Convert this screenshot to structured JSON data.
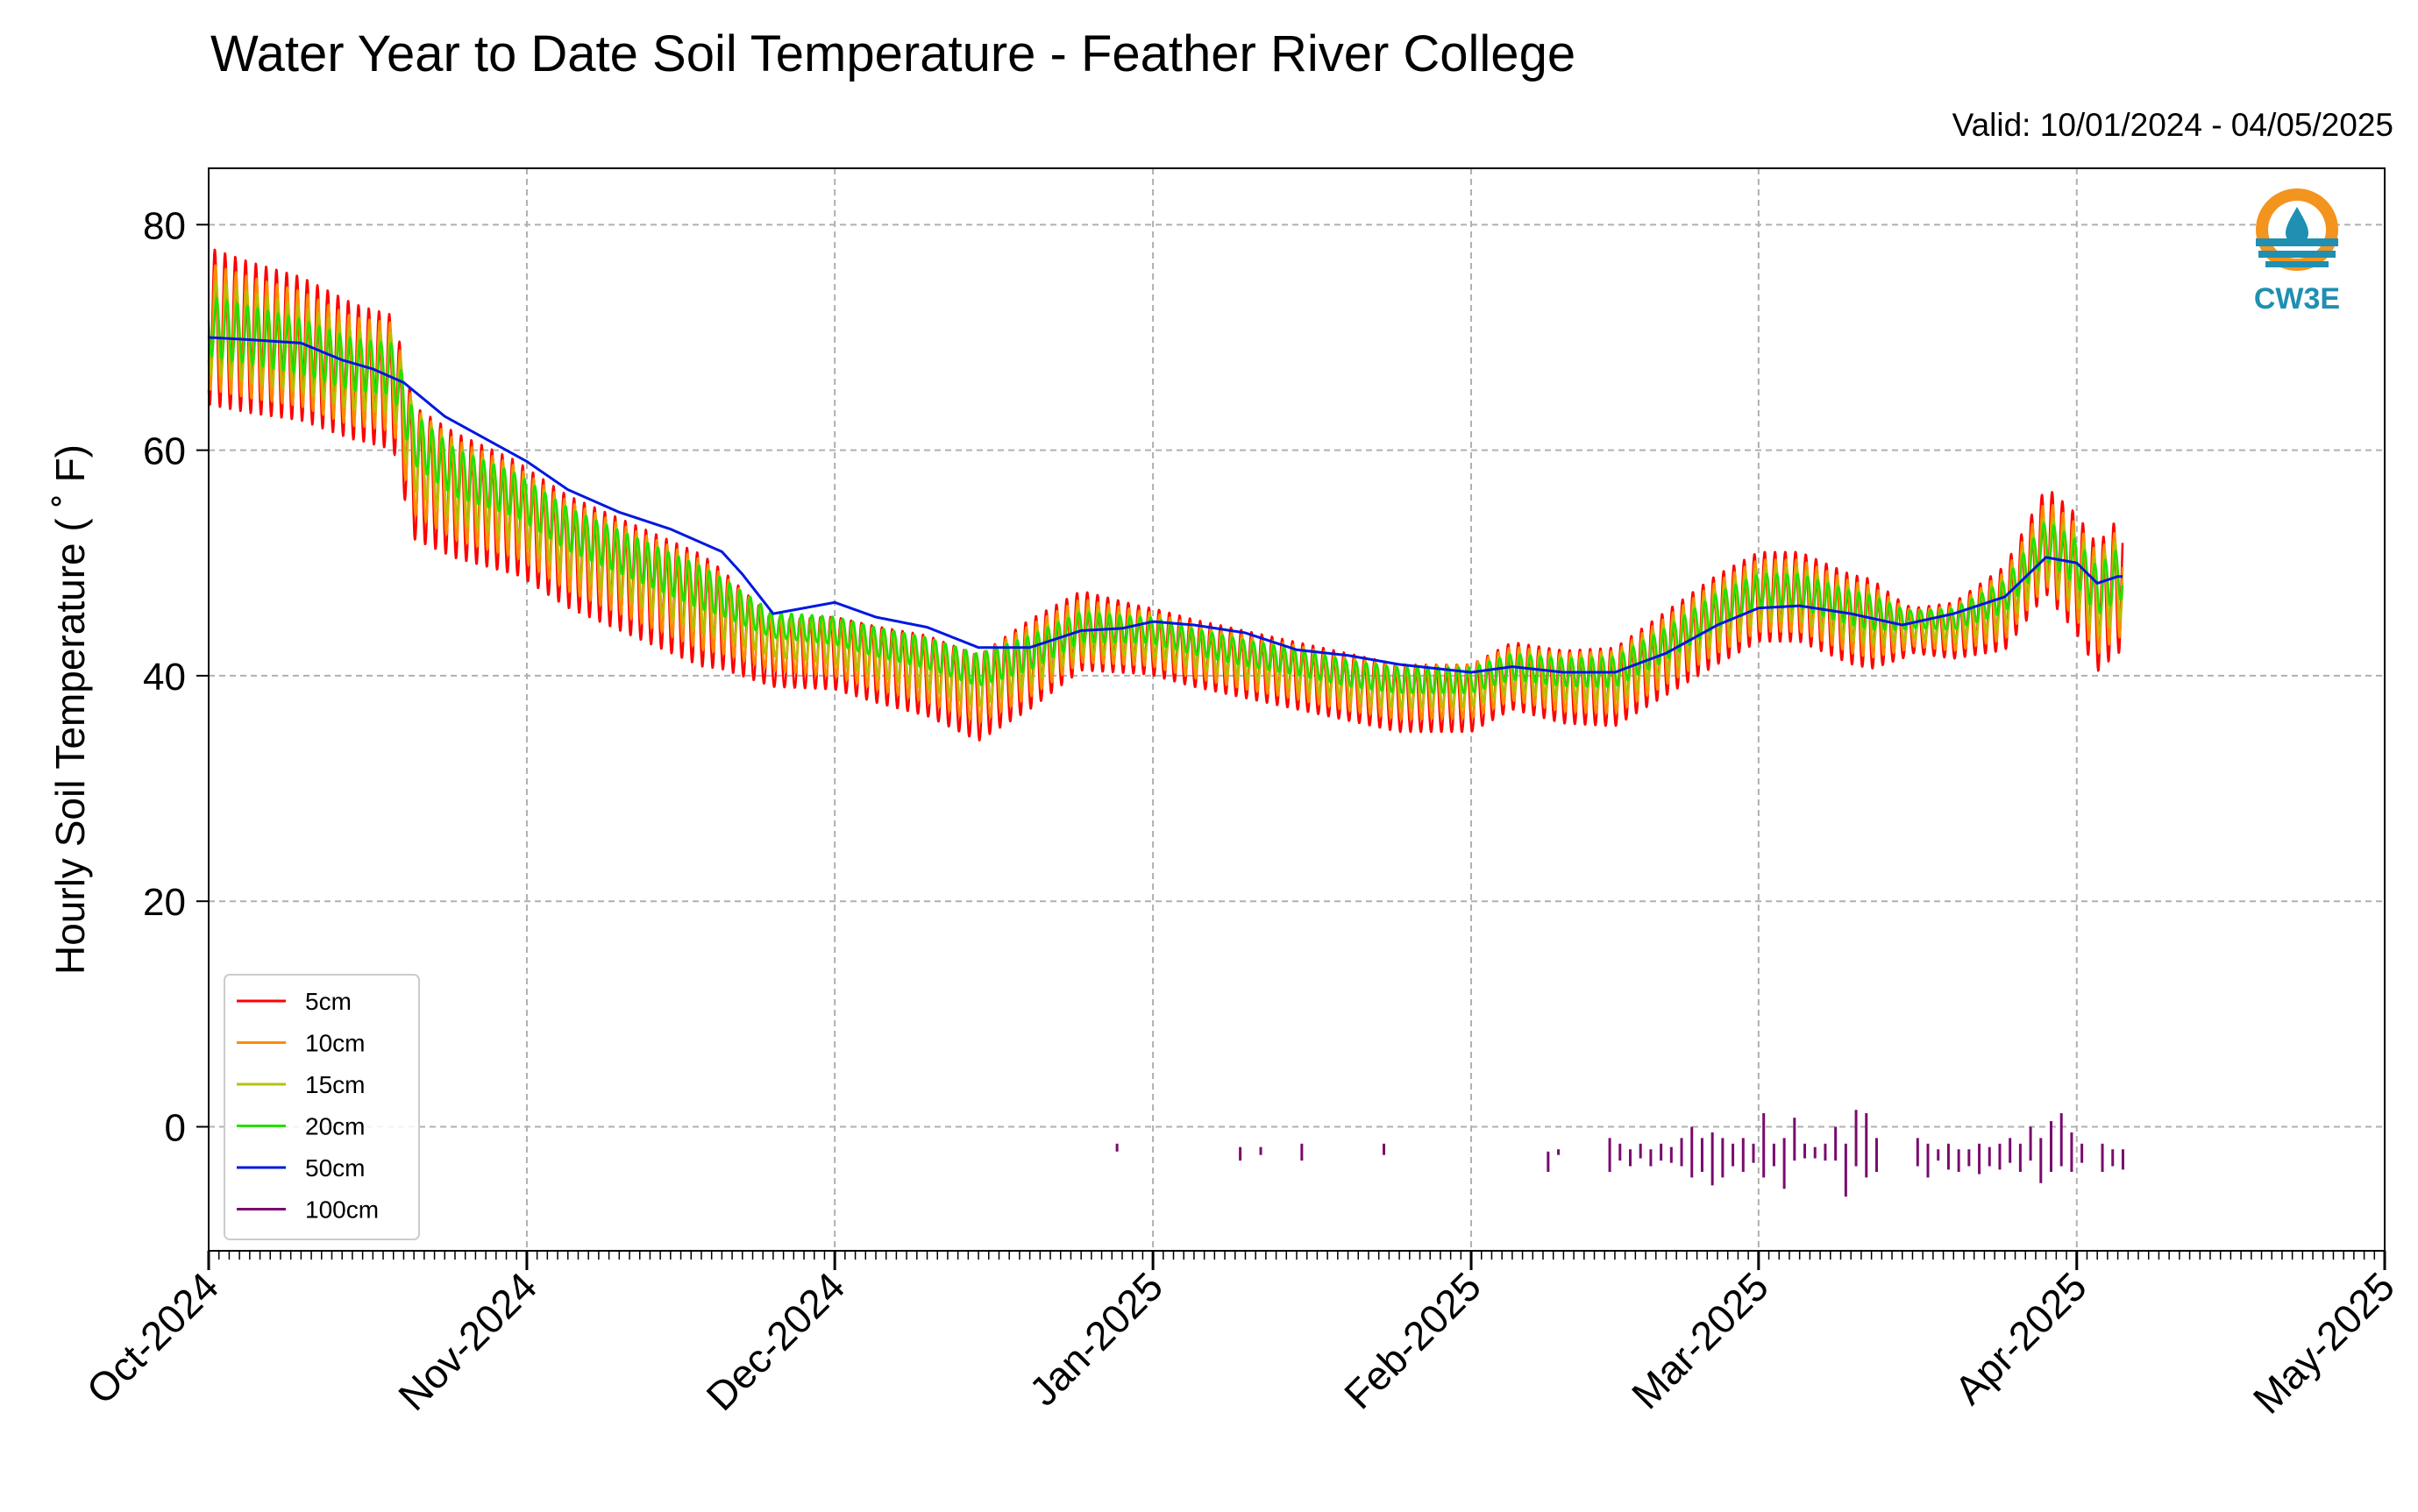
{
  "header": {
    "title": "Water Year to Date Soil Temperature - Feather River College",
    "valid": "Valid: 10/01/2024 - 04/05/2025"
  },
  "logo": {
    "text": "CW3E",
    "icon": "water-drop-sun-icon",
    "colors": {
      "orange": "#f3941e",
      "teal": "#1f8fb2"
    }
  },
  "chart_data": {
    "type": "line",
    "title": "Water Year to Date Soil Temperature - Feather River College",
    "ylabel": "Hourly Soil Temperature ( ˚ F)",
    "ylim": [
      -11,
      85
    ],
    "yticks": [
      0,
      20,
      40,
      60,
      80
    ],
    "xlim": [
      "2024-10-01",
      "2025-05-01"
    ],
    "xtick_labels": [
      "Oct-2024",
      "Nov-2024",
      "Dec-2024",
      "Jan-2025",
      "Feb-2025",
      "Mar-2025",
      "Apr-2025",
      "May-2025"
    ],
    "xtick_dates": [
      "2024-10-01",
      "2024-11-01",
      "2024-12-01",
      "2025-01-01",
      "2025-02-01",
      "2025-03-01",
      "2025-04-01",
      "2025-05-01"
    ],
    "grid": true,
    "legend_position": "lower-left",
    "series": [
      {
        "name": "5cm",
        "color": "#ff0000",
        "amp_scale": 1.0,
        "lag": 0.0,
        "mean_dates": [
          "2024-10-01",
          "2024-10-05",
          "2024-10-10",
          "2024-10-15",
          "2024-10-19",
          "2024-10-21",
          "2024-10-25",
          "2024-10-31",
          "2024-11-05",
          "2024-11-10",
          "2024-11-15",
          "2024-11-20",
          "2024-11-25",
          "2024-12-01",
          "2024-12-05",
          "2024-12-10",
          "2024-12-15",
          "2024-12-20",
          "2024-12-25",
          "2025-01-01",
          "2025-01-05",
          "2025-01-10",
          "2025-01-15",
          "2025-01-20",
          "2025-01-25",
          "2025-02-01",
          "2025-02-05",
          "2025-02-10",
          "2025-02-15",
          "2025-02-20",
          "2025-02-25",
          "2025-03-01",
          "2025-03-05",
          "2025-03-10",
          "2025-03-15",
          "2025-03-20",
          "2025-03-25",
          "2025-03-29",
          "2025-04-01",
          "2025-04-03",
          "2025-04-05"
        ],
        "mean_values": [
          71,
          70,
          69,
          67,
          66,
          58,
          56,
          54,
          51,
          49,
          47,
          45,
          42,
          42,
          41,
          40,
          38,
          41,
          44,
          43,
          42,
          41,
          40,
          39,
          38,
          38,
          40,
          39,
          39,
          42,
          45,
          47,
          47,
          45,
          44,
          44,
          46,
          52,
          49,
          46,
          48
        ],
        "amp_dates": [
          "2024-10-01",
          "2024-10-16",
          "2024-10-20",
          "2024-11-01",
          "2024-11-18",
          "2024-11-25",
          "2024-12-20",
          "2024-12-31",
          "2025-01-05",
          "2025-01-31",
          "2025-02-05",
          "2025-02-15",
          "2025-02-25",
          "2025-03-12",
          "2025-03-16",
          "2025-03-20",
          "2025-03-30",
          "2025-04-05"
        ],
        "amp_values": [
          7,
          6,
          6,
          5,
          5,
          3,
          4,
          3,
          3,
          3,
          3,
          3.5,
          4,
          4,
          2,
          2.5,
          5,
          6
        ],
        "note": ""
      },
      {
        "name": "10cm",
        "color": "#ff8c00",
        "amp_scale": 0.8,
        "lag": 0.06,
        "mean_dates": [
          "2024-10-01",
          "2024-10-05",
          "2024-10-10",
          "2024-10-15",
          "2024-10-19",
          "2024-10-21",
          "2024-10-25",
          "2024-10-31",
          "2024-11-05",
          "2024-11-10",
          "2024-11-15",
          "2024-11-20",
          "2024-11-25",
          "2024-12-01",
          "2024-12-05",
          "2024-12-10",
          "2024-12-15",
          "2024-12-20",
          "2024-12-25",
          "2025-01-01",
          "2025-01-05",
          "2025-01-10",
          "2025-01-15",
          "2025-01-20",
          "2025-01-25",
          "2025-02-01",
          "2025-02-05",
          "2025-02-10",
          "2025-02-15",
          "2025-02-20",
          "2025-02-25",
          "2025-03-01",
          "2025-03-05",
          "2025-03-10",
          "2025-03-15",
          "2025-03-20",
          "2025-03-25",
          "2025-03-29",
          "2025-04-01",
          "2025-04-03",
          "2025-04-05"
        ],
        "mean_values": [
          71,
          70,
          69,
          67,
          66.5,
          59,
          56.5,
          54.5,
          51.5,
          49.5,
          47.5,
          45.5,
          42.8,
          42.5,
          41.5,
          40.5,
          38.8,
          41.3,
          44,
          43.2,
          42.2,
          41.2,
          40.3,
          39.3,
          38.5,
          38.6,
          40.2,
          39.4,
          39.4,
          42.2,
          45.2,
          47.1,
          47.1,
          45.2,
          44.2,
          44.2,
          46.2,
          51.8,
          49.2,
          46.4,
          48.2
        ],
        "amp_dates": [
          "2024-10-01",
          "2024-10-16",
          "2024-10-20",
          "2024-11-01",
          "2024-11-18",
          "2024-11-25",
          "2024-12-20",
          "2024-12-31",
          "2025-01-05",
          "2025-01-31",
          "2025-02-05",
          "2025-02-15",
          "2025-02-25",
          "2025-03-12",
          "2025-03-16",
          "2025-03-20",
          "2025-03-30",
          "2025-04-05"
        ],
        "amp_values": [
          7,
          6,
          6,
          5,
          5,
          3,
          4,
          3,
          3,
          3,
          3,
          3.5,
          4,
          4,
          2,
          2.5,
          5,
          6
        ],
        "note": ""
      },
      {
        "name": "15cm",
        "color": "#b8c000",
        "amp_scale": 0.6,
        "lag": 0.12,
        "mean_dates": [
          "2024-10-01",
          "2024-10-05",
          "2024-10-10",
          "2024-10-15",
          "2024-10-19",
          "2024-10-21",
          "2024-10-25",
          "2024-10-31",
          "2024-11-05",
          "2024-11-10",
          "2024-11-15",
          "2024-11-20",
          "2024-11-25",
          "2024-12-01",
          "2024-12-05",
          "2024-12-10",
          "2024-12-15",
          "2024-12-20",
          "2024-12-25",
          "2025-01-01",
          "2025-01-05",
          "2025-01-10",
          "2025-01-15",
          "2025-01-20",
          "2025-01-25",
          "2025-02-01",
          "2025-02-05",
          "2025-02-10",
          "2025-02-15",
          "2025-02-20",
          "2025-02-25",
          "2025-03-01",
          "2025-03-05",
          "2025-03-10",
          "2025-03-15",
          "2025-03-20",
          "2025-03-25",
          "2025-03-29",
          "2025-04-01",
          "2025-04-03",
          "2025-04-05"
        ],
        "mean_values": [
          71,
          70,
          69,
          67.2,
          66.8,
          60,
          57,
          55,
          52,
          50,
          48,
          46,
          43.5,
          43,
          42,
          41,
          39.5,
          41.5,
          44,
          43.5,
          42.5,
          41.5,
          40.6,
          39.6,
          38.9,
          39,
          40.4,
          39.8,
          39.8,
          42.4,
          45.4,
          47.2,
          47.2,
          45.5,
          44.5,
          44.5,
          46.5,
          51.5,
          49.5,
          46.8,
          48.5
        ],
        "amp_dates": [
          "2024-10-01",
          "2024-10-16",
          "2024-10-20",
          "2024-11-01",
          "2024-11-18",
          "2024-11-25",
          "2024-12-20",
          "2024-12-31",
          "2025-01-05",
          "2025-01-31",
          "2025-02-05",
          "2025-02-15",
          "2025-02-25",
          "2025-03-12",
          "2025-03-16",
          "2025-03-20",
          "2025-03-30",
          "2025-04-05"
        ],
        "amp_values": [
          7,
          6,
          6,
          5,
          5,
          3,
          4,
          3,
          3,
          3,
          3,
          3.5,
          4,
          4,
          2,
          2.5,
          5,
          6
        ],
        "note": ""
      },
      {
        "name": "20cm",
        "color": "#22e000",
        "amp_scale": 0.38,
        "lag": 0.18,
        "mean_dates": [
          "2024-10-01",
          "2024-10-05",
          "2024-10-10",
          "2024-10-15",
          "2024-10-19",
          "2024-10-21",
          "2024-10-25",
          "2024-10-31",
          "2024-11-05",
          "2024-11-10",
          "2024-11-15",
          "2024-11-20",
          "2024-11-25",
          "2024-12-01",
          "2024-12-05",
          "2024-12-10",
          "2024-12-15",
          "2024-12-20",
          "2024-12-25",
          "2025-01-01",
          "2025-01-05",
          "2025-01-10",
          "2025-01-15",
          "2025-01-20",
          "2025-01-25",
          "2025-02-01",
          "2025-02-05",
          "2025-02-10",
          "2025-02-15",
          "2025-02-20",
          "2025-02-25",
          "2025-03-01",
          "2025-03-05",
          "2025-03-10",
          "2025-03-15",
          "2025-03-20",
          "2025-03-25",
          "2025-03-29",
          "2025-04-01",
          "2025-04-03",
          "2025-04-05"
        ],
        "mean_values": [
          71,
          70.2,
          69.2,
          67.6,
          67.2,
          61,
          58,
          56,
          53,
          51,
          49,
          47,
          44.5,
          44,
          43,
          42,
          40.5,
          42,
          44.3,
          44,
          43,
          42,
          41.2,
          40.2,
          39.6,
          39.6,
          40.8,
          40.3,
          40.3,
          42.8,
          45.8,
          47.5,
          47.5,
          46,
          45,
          45,
          47,
          52,
          50,
          47.5,
          49
        ],
        "amp_dates": [
          "2024-10-01",
          "2024-10-16",
          "2024-10-20",
          "2024-11-01",
          "2024-11-18",
          "2024-11-25",
          "2024-12-20",
          "2024-12-31",
          "2025-01-05",
          "2025-01-31",
          "2025-02-05",
          "2025-02-15",
          "2025-02-25",
          "2025-03-12",
          "2025-03-16",
          "2025-03-20",
          "2025-03-30",
          "2025-04-05"
        ],
        "amp_values": [
          7,
          6,
          6,
          5,
          5,
          3,
          4,
          3,
          3,
          3,
          3,
          3.5,
          4,
          4,
          2,
          2.5,
          5,
          6
        ],
        "note": ""
      },
      {
        "name": "50cm",
        "color": "#0018e0",
        "amp_scale": 0.0,
        "lag": 0.0,
        "mean_dates": [
          "2024-10-01",
          "2024-10-05",
          "2024-10-10",
          "2024-10-14",
          "2024-10-17",
          "2024-10-20",
          "2024-10-24",
          "2024-10-28",
          "2024-11-01",
          "2024-11-05",
          "2024-11-10",
          "2024-11-15",
          "2024-11-20",
          "2024-11-22",
          "2024-11-25",
          "2024-12-01",
          "2024-12-05",
          "2024-12-10",
          "2024-12-15",
          "2024-12-20",
          "2024-12-25",
          "2024-12-29",
          "2025-01-01",
          "2025-01-05",
          "2025-01-10",
          "2025-01-15",
          "2025-01-20",
          "2025-01-25",
          "2025-02-01",
          "2025-02-05",
          "2025-02-10",
          "2025-02-15",
          "2025-02-20",
          "2025-02-25",
          "2025-03-01",
          "2025-03-05",
          "2025-03-10",
          "2025-03-15",
          "2025-03-20",
          "2025-03-25",
          "2025-03-29",
          "2025-04-01",
          "2025-04-03",
          "2025-04-05"
        ],
        "mean_values": [
          70,
          69.8,
          69.5,
          68,
          67.2,
          66,
          63,
          61,
          59,
          56.5,
          54.5,
          53,
          51,
          49,
          45.5,
          46.5,
          45.2,
          44.3,
          42.5,
          42.5,
          44,
          44.2,
          44.8,
          44.5,
          43.8,
          42.3,
          41.8,
          41,
          40.3,
          40.8,
          40.3,
          40.3,
          42,
          44.5,
          46,
          46.2,
          45.5,
          44.5,
          45.5,
          47,
          50.5,
          50,
          48.2,
          48.8
        ],
        "note": ""
      },
      {
        "name": "100cm",
        "color": "#7a0a6e",
        "segments": [
          {
            "date": "2024-12-28",
            "y0": -1.5,
            "y1": -2.2
          },
          {
            "date": "2025-01-09",
            "y0": -1.8,
            "y1": -3.0
          },
          {
            "date": "2025-01-11",
            "y0": -1.8,
            "y1": -2.5
          },
          {
            "date": "2025-01-15",
            "y0": -1.5,
            "y1": -3.0
          },
          {
            "date": "2025-01-23",
            "y0": -1.5,
            "y1": -2.5
          },
          {
            "date": "2025-02-08",
            "y0": -2.2,
            "y1": -4.0
          },
          {
            "date": "2025-02-09",
            "y0": -2.0,
            "y1": -2.5
          },
          {
            "date": "2025-02-14",
            "y0": -1.0,
            "y1": -4.0
          },
          {
            "date": "2025-02-15",
            "y0": -1.5,
            "y1": -3.0
          },
          {
            "date": "2025-02-16",
            "y0": -2.0,
            "y1": -3.5
          },
          {
            "date": "2025-02-17",
            "y0": -1.5,
            "y1": -2.8
          },
          {
            "date": "2025-02-18",
            "y0": -2.0,
            "y1": -3.5
          },
          {
            "date": "2025-02-19",
            "y0": -1.5,
            "y1": -3.0
          },
          {
            "date": "2025-02-20",
            "y0": -1.8,
            "y1": -3.2
          },
          {
            "date": "2025-02-21",
            "y0": -1.0,
            "y1": -3.5
          },
          {
            "date": "2025-02-22",
            "y0": 0.0,
            "y1": -4.5
          },
          {
            "date": "2025-02-23",
            "y0": -1.0,
            "y1": -4.0
          },
          {
            "date": "2025-02-24",
            "y0": -0.5,
            "y1": -5.2
          },
          {
            "date": "2025-02-25",
            "y0": -1.0,
            "y1": -4.5
          },
          {
            "date": "2025-02-26",
            "y0": -1.5,
            "y1": -3.5
          },
          {
            "date": "2025-02-27",
            "y0": -1.0,
            "y1": -4.0
          },
          {
            "date": "2025-02-28",
            "y0": -1.5,
            "y1": -3.2
          },
          {
            "date": "2025-03-01",
            "y0": 1.2,
            "y1": -4.5
          },
          {
            "date": "2025-03-02",
            "y0": -1.5,
            "y1": -3.5
          },
          {
            "date": "2025-03-03",
            "y0": -1.0,
            "y1": -5.5
          },
          {
            "date": "2025-03-04",
            "y0": 0.8,
            "y1": -3.0
          },
          {
            "date": "2025-03-05",
            "y0": -1.5,
            "y1": -2.8
          },
          {
            "date": "2025-03-06",
            "y0": -1.8,
            "y1": -2.8
          },
          {
            "date": "2025-03-07",
            "y0": -1.5,
            "y1": -3.0
          },
          {
            "date": "2025-03-08",
            "y0": 0.0,
            "y1": -3.0
          },
          {
            "date": "2025-03-09",
            "y0": -1.5,
            "y1": -6.2
          },
          {
            "date": "2025-03-10",
            "y0": 1.5,
            "y1": -3.5
          },
          {
            "date": "2025-03-11",
            "y0": 1.2,
            "y1": -4.5
          },
          {
            "date": "2025-03-12",
            "y0": -1.0,
            "y1": -4.0
          },
          {
            "date": "2025-03-16",
            "y0": -1.0,
            "y1": -3.5
          },
          {
            "date": "2025-03-17",
            "y0": -1.5,
            "y1": -4.5
          },
          {
            "date": "2025-03-18",
            "y0": -2.0,
            "y1": -3.0
          },
          {
            "date": "2025-03-19",
            "y0": -1.5,
            "y1": -3.8
          },
          {
            "date": "2025-03-20",
            "y0": -2.0,
            "y1": -4.0
          },
          {
            "date": "2025-03-21",
            "y0": -2.0,
            "y1": -3.5
          },
          {
            "date": "2025-03-22",
            "y0": -1.5,
            "y1": -4.2
          },
          {
            "date": "2025-03-23",
            "y0": -1.8,
            "y1": -3.5
          },
          {
            "date": "2025-03-24",
            "y0": -1.5,
            "y1": -3.8
          },
          {
            "date": "2025-03-25",
            "y0": -1.0,
            "y1": -3.2
          },
          {
            "date": "2025-03-26",
            "y0": -1.5,
            "y1": -4.0
          },
          {
            "date": "2025-03-27",
            "y0": 0.0,
            "y1": -3.0
          },
          {
            "date": "2025-03-28",
            "y0": -1.0,
            "y1": -5.0
          },
          {
            "date": "2025-03-29",
            "y0": 0.5,
            "y1": -4.0
          },
          {
            "date": "2025-03-30",
            "y0": 1.2,
            "y1": -3.5
          },
          {
            "date": "2025-03-31",
            "y0": -0.5,
            "y1": -4.0
          },
          {
            "date": "2025-04-01",
            "y0": -1.5,
            "y1": -3.2
          },
          {
            "date": "2025-04-03",
            "y0": -1.5,
            "y1": -4.0
          },
          {
            "date": "2025-04-04",
            "y0": -2.0,
            "y1": -3.5
          },
          {
            "date": "2025-04-05",
            "y0": -2.0,
            "y1": -3.8
          }
        ]
      }
    ]
  }
}
